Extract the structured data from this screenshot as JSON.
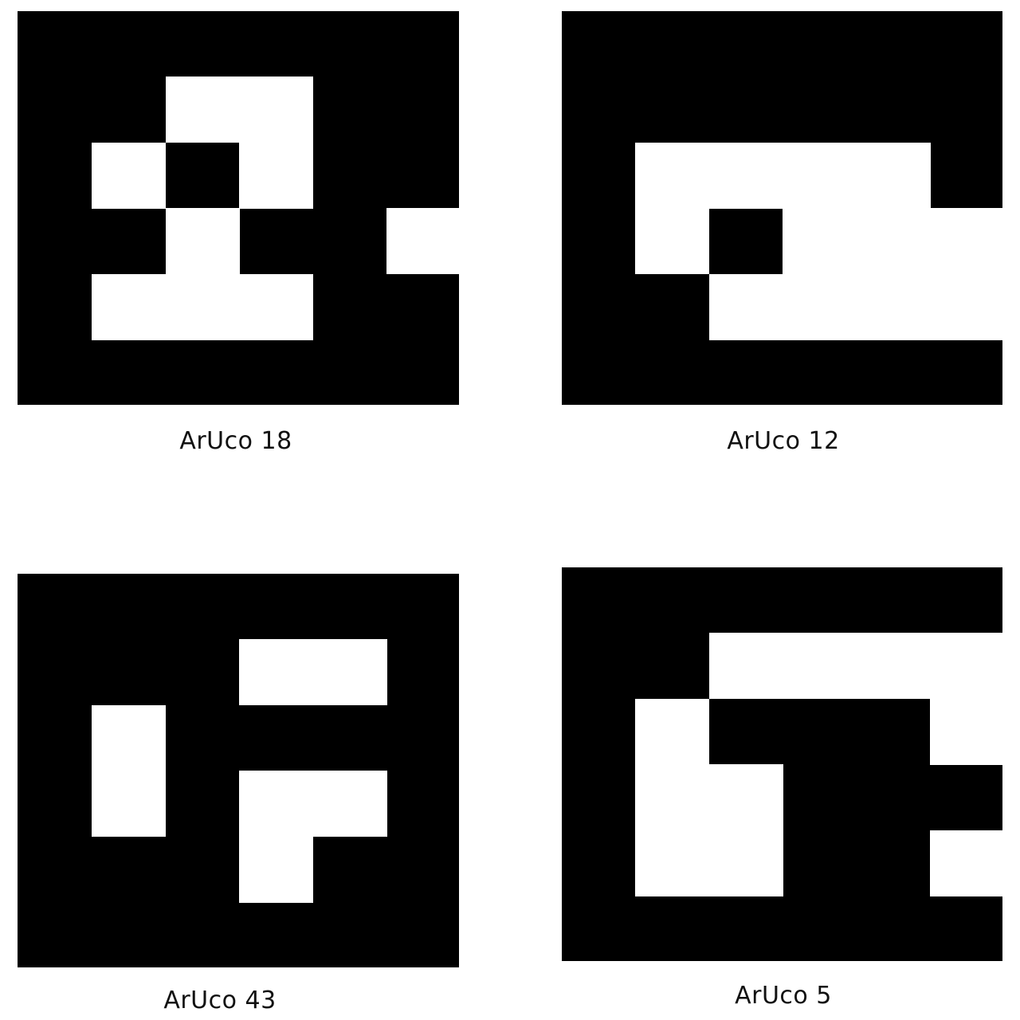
{
  "markers": [
    {
      "caption": "ArUco 18",
      "grid": [
        "0000000",
        "0011000",
        "0101000",
        "0010010",
        "0111000",
        "0000000",
        "0000000"
      ]
    },
    {
      "caption": "ArUco 12",
      "grid": [
        "0000000",
        "0000000",
        "0111100",
        "0101110",
        "0011110",
        "0000000",
        "0000000"
      ]
    },
    {
      "caption": "ArUco 43",
      "grid": [
        "0000000",
        "0001100",
        "0100000",
        "0101100",
        "0001000",
        "0000000",
        "0000000"
      ]
    },
    {
      "caption": "ArUco 5",
      "grid": [
        "0000000",
        "0011110",
        "0100010",
        "0110000",
        "0110010",
        "0000000",
        "0000000"
      ]
    }
  ],
  "colors": {
    "marker": "#000000",
    "cell": "#ffffff"
  }
}
